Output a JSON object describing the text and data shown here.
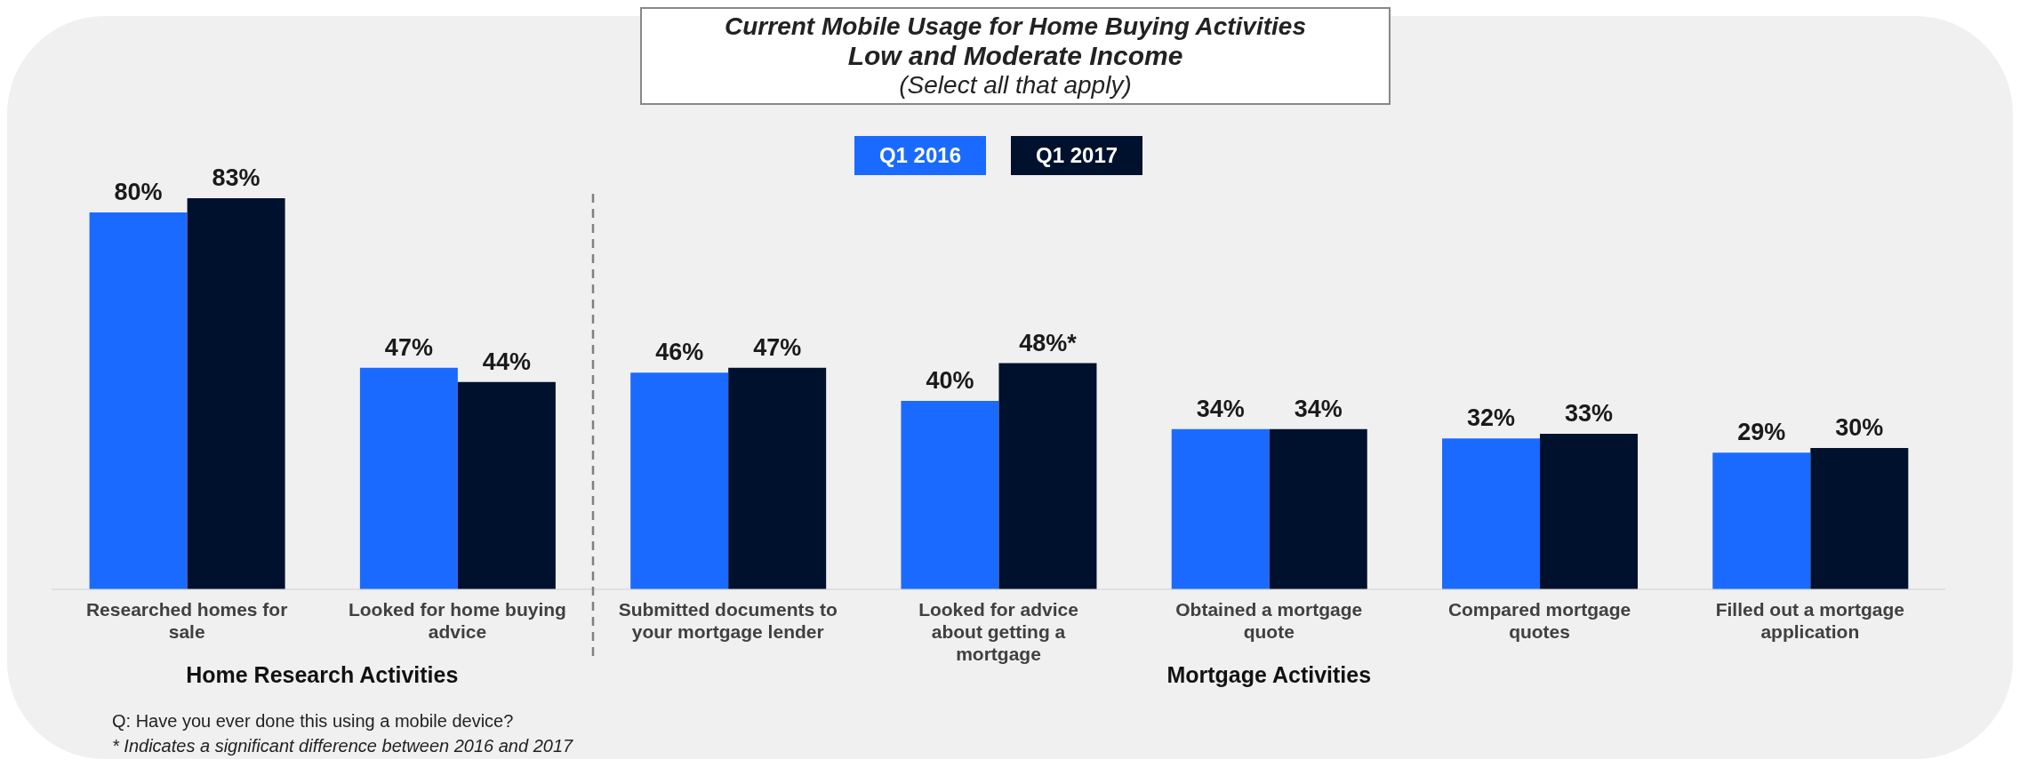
{
  "chart_data": {
    "type": "bar",
    "title": "Current Mobile Usage for Home Buying Activities",
    "subtitle": "Low and Moderate Income",
    "categories": [
      "Researched homes for sale",
      "Looked for home buying advice",
      "Submitted documents to your mortgage lender",
      "Looked for advice about getting a mortgage",
      "Obtained a mortgage quote",
      "Compared mortgage quotes",
      "Filled out a mortgage application"
    ],
    "series": [
      {
        "name": "Q1 2016",
        "color": "#1a6aff",
        "values": [
          80,
          47,
          46,
          40,
          34,
          32,
          29
        ],
        "value_labels": [
          "80%",
          "47%",
          "46%",
          "40%",
          "34%",
          "32%",
          "29%"
        ]
      },
      {
        "name": "Q1 2017",
        "color": "#00112e",
        "values": [
          83,
          44,
          47,
          48,
          34,
          33,
          30
        ],
        "value_labels": [
          "83%",
          "44%",
          "47%",
          "48%*",
          "34%",
          "33%",
          "30%"
        ]
      }
    ],
    "legend": "top",
    "grid": false,
    "annotations": [
      "(Select all that apply)",
      "Home Research Activities",
      "Mortgage Activities",
      "Q: Have you ever done this using a mobile device?",
      "* Indicates a significant difference between 2016 and 2017"
    ]
  }
}
